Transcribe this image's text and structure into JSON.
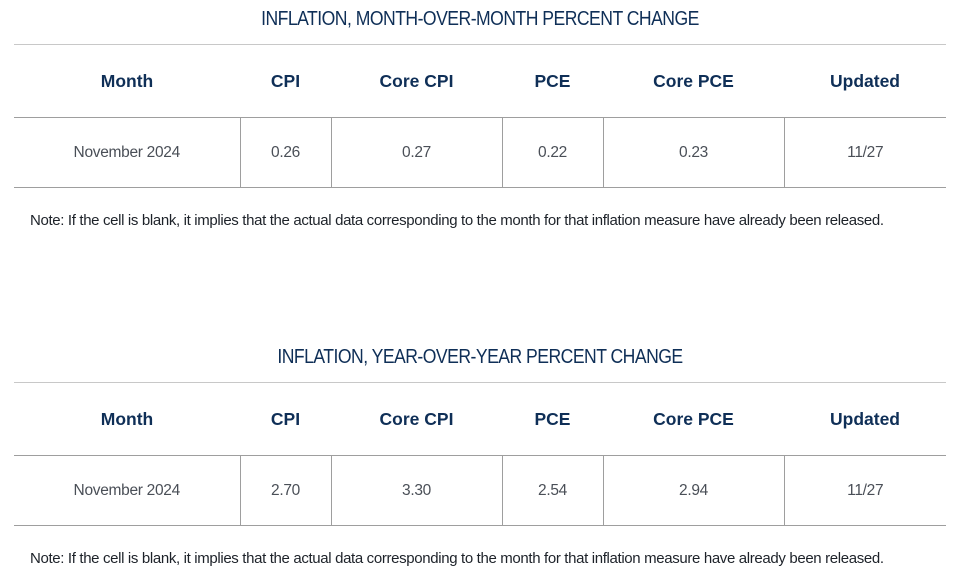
{
  "tables": [
    {
      "title": "INFLATION, MONTH-OVER-MONTH PERCENT CHANGE",
      "columns": [
        "Month",
        "CPI",
        "Core CPI",
        "PCE",
        "Core PCE",
        "Updated"
      ],
      "rows": [
        [
          "November 2024",
          "0.26",
          "0.27",
          "0.22",
          "0.23",
          "11/27"
        ]
      ],
      "note": "Note: If the cell is blank, it implies that the actual data corresponding to the month for that inflation measure have already been released."
    },
    {
      "title": "INFLATION, YEAR-OVER-YEAR PERCENT CHANGE",
      "columns": [
        "Month",
        "CPI",
        "Core CPI",
        "PCE",
        "Core PCE",
        "Updated"
      ],
      "rows": [
        [
          "November 2024",
          "2.70",
          "3.30",
          "2.54",
          "2.94",
          "11/27"
        ]
      ],
      "note": "Note: If the cell is blank, it implies that the actual data corresponding to the month for that inflation measure have already been released."
    }
  ],
  "colors": {
    "title": "#0f2f57",
    "header": "#0f2f57",
    "cell_text": "#4a4f57",
    "rule": "#9e9e9e"
  }
}
